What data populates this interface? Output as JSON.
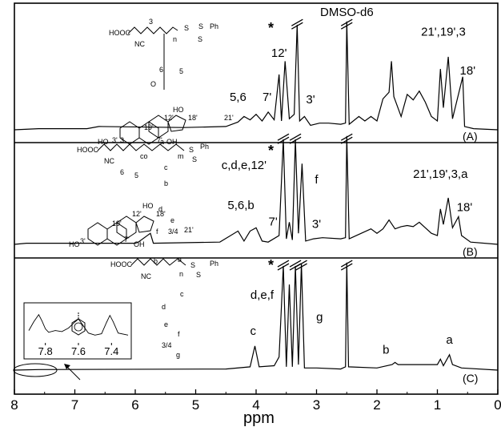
{
  "chart_data": {
    "type": "line",
    "title": "",
    "xlabel": "ppm",
    "ylabel": "",
    "xlim": [
      8,
      0
    ],
    "x_reversed": true,
    "x_ticks": [
      8,
      7,
      6,
      5,
      4,
      3,
      2,
      1,
      0
    ],
    "x_tick_labels": [
      "8",
      "7",
      "6",
      "5",
      "4",
      "3",
      "2",
      "1",
      "0"
    ],
    "grid": false,
    "legend": "none",
    "solvent_label": "DMSO-d6",
    "residual_marker": "*",
    "series": [
      {
        "name": "(A)",
        "points": [
          [
            8.0,
            0.0
          ],
          [
            7.6,
            0.01
          ],
          [
            6.8,
            0.01
          ],
          [
            6.6,
            0.03
          ],
          [
            5.2,
            0.02
          ],
          [
            4.5,
            0.03
          ],
          [
            4.3,
            0.07
          ],
          [
            4.2,
            0.12
          ],
          [
            4.1,
            0.09
          ],
          [
            4.0,
            0.14
          ],
          [
            3.9,
            0.08
          ],
          [
            3.8,
            0.16
          ],
          [
            3.7,
            0.09
          ],
          [
            3.62,
            0.5
          ],
          [
            3.58,
            0.08
          ],
          [
            3.52,
            0.62
          ],
          [
            3.45,
            0.1
          ],
          [
            3.37,
            0.14
          ],
          [
            3.32,
            0.95
          ],
          [
            3.28,
            0.08
          ],
          [
            3.2,
            0.12
          ],
          [
            3.1,
            0.04
          ],
          [
            2.95,
            0.06
          ],
          [
            2.8,
            0.06
          ],
          [
            2.6,
            0.05
          ],
          [
            2.52,
            0.06
          ],
          [
            2.5,
            0.98
          ],
          [
            2.46,
            0.05
          ],
          [
            2.3,
            0.12
          ],
          [
            2.2,
            0.08
          ],
          [
            2.1,
            0.12
          ],
          [
            2.0,
            0.08
          ],
          [
            1.9,
            0.28
          ],
          [
            1.8,
            0.34
          ],
          [
            1.76,
            0.62
          ],
          [
            1.72,
            0.3
          ],
          [
            1.6,
            0.12
          ],
          [
            1.5,
            0.32
          ],
          [
            1.4,
            0.27
          ],
          [
            1.3,
            0.35
          ],
          [
            1.2,
            0.25
          ],
          [
            1.1,
            0.12
          ],
          [
            1.0,
            0.08
          ],
          [
            0.95,
            0.55
          ],
          [
            0.9,
            0.2
          ],
          [
            0.82,
            0.66
          ],
          [
            0.75,
            0.1
          ],
          [
            0.58,
            0.48
          ],
          [
            0.55,
            0.03
          ],
          [
            0.4,
            0.01
          ],
          [
            0.0,
            0.0
          ]
        ],
        "labels": [
          {
            "text": "5,6",
            "x": 4.3,
            "y": 0.26
          },
          {
            "text": "7'",
            "x": 3.82,
            "y": 0.26
          },
          {
            "text": "12'",
            "x": 3.62,
            "y": 0.66
          },
          {
            "text": "3'",
            "x": 3.1,
            "y": 0.24
          },
          {
            "text": "21',19',3",
            "x": 0.9,
            "y": 0.85
          },
          {
            "text": "18'",
            "x": 0.5,
            "y": 0.5
          }
        ]
      },
      {
        "name": "(B)",
        "points": [
          [
            8.0,
            0.0
          ],
          [
            7.8,
            0.01
          ],
          [
            6.0,
            0.01
          ],
          [
            5.95,
            0.02
          ],
          [
            5.75,
            0.1
          ],
          [
            5.7,
            0.01
          ],
          [
            4.6,
            0.02
          ],
          [
            4.3,
            0.12
          ],
          [
            4.2,
            0.03
          ],
          [
            4.1,
            0.12
          ],
          [
            4.0,
            0.15
          ],
          [
            3.9,
            0.03
          ],
          [
            3.8,
            0.02
          ],
          [
            3.62,
            0.08
          ],
          [
            3.55,
            0.95
          ],
          [
            3.5,
            0.05
          ],
          [
            3.45,
            0.2
          ],
          [
            3.4,
            0.04
          ],
          [
            3.35,
            0.95
          ],
          [
            3.3,
            0.1
          ],
          [
            3.24,
            0.73
          ],
          [
            3.18,
            0.03
          ],
          [
            3.05,
            0.05
          ],
          [
            2.9,
            0.06
          ],
          [
            2.6,
            0.05
          ],
          [
            2.52,
            0.06
          ],
          [
            2.5,
            0.98
          ],
          [
            2.46,
            0.05
          ],
          [
            2.3,
            0.09
          ],
          [
            2.1,
            0.14
          ],
          [
            2.0,
            0.1
          ],
          [
            1.9,
            0.14
          ],
          [
            1.8,
            0.22
          ],
          [
            1.7,
            0.14
          ],
          [
            1.6,
            0.16
          ],
          [
            1.5,
            0.17
          ],
          [
            1.4,
            0.16
          ],
          [
            1.3,
            0.2
          ],
          [
            1.2,
            0.15
          ],
          [
            1.1,
            0.1
          ],
          [
            1.0,
            0.08
          ],
          [
            0.95,
            0.32
          ],
          [
            0.9,
            0.18
          ],
          [
            0.82,
            0.42
          ],
          [
            0.75,
            0.15
          ],
          [
            0.65,
            0.25
          ],
          [
            0.6,
            0.08
          ],
          [
            0.45,
            0.02
          ],
          [
            0.0,
            0.0
          ]
        ],
        "labels": [
          {
            "text": "c,d,e,12'",
            "x": 4.2,
            "y": 0.68
          },
          {
            "text": "f",
            "x": 3.0,
            "y": 0.55
          },
          {
            "text": "5,6,b",
            "x": 4.25,
            "y": 0.32
          },
          {
            "text": "7'",
            "x": 3.72,
            "y": 0.17
          },
          {
            "text": "3'",
            "x": 3.0,
            "y": 0.15
          },
          {
            "text": "21',19',3,a",
            "x": 0.95,
            "y": 0.6
          },
          {
            "text": "18'",
            "x": 0.55,
            "y": 0.3
          }
        ]
      },
      {
        "name": "(C)",
        "points": [
          [
            8.0,
            0.0
          ],
          [
            7.6,
            0.005
          ],
          [
            4.5,
            0.01
          ],
          [
            4.1,
            0.03
          ],
          [
            4.02,
            0.22
          ],
          [
            3.95,
            0.03
          ],
          [
            3.7,
            0.04
          ],
          [
            3.62,
            0.12
          ],
          [
            3.55,
            0.95
          ],
          [
            3.5,
            0.03
          ],
          [
            3.45,
            0.78
          ],
          [
            3.4,
            0.03
          ],
          [
            3.35,
            0.95
          ],
          [
            3.3,
            0.05
          ],
          [
            3.25,
            0.97
          ],
          [
            3.2,
            0.02
          ],
          [
            3.0,
            0.02
          ],
          [
            2.6,
            0.01
          ],
          [
            2.52,
            0.03
          ],
          [
            2.5,
            0.98
          ],
          [
            2.47,
            0.03
          ],
          [
            2.0,
            0.02
          ],
          [
            1.75,
            0.05
          ],
          [
            1.7,
            0.07
          ],
          [
            1.65,
            0.05
          ],
          [
            1.0,
            0.05
          ],
          [
            0.95,
            0.1
          ],
          [
            0.9,
            0.04
          ],
          [
            0.8,
            0.14
          ],
          [
            0.75,
            0.05
          ],
          [
            0.6,
            0.02
          ],
          [
            0.0,
            0.0
          ]
        ],
        "labels": [
          {
            "text": "d,e,f",
            "x": 3.9,
            "y": 0.65
          },
          {
            "text": "g",
            "x": 2.95,
            "y": 0.45
          },
          {
            "text": "c",
            "x": 4.05,
            "y": 0.32
          },
          {
            "text": "b",
            "x": 1.85,
            "y": 0.15
          },
          {
            "text": "a",
            "x": 0.8,
            "y": 0.24
          }
        ]
      }
    ],
    "inset": {
      "xlim": [
        7.9,
        7.3
      ],
      "x_ticks": [
        7.8,
        7.6,
        7.4
      ],
      "x_tick_labels": [
        "7.8",
        "7.6",
        "7.4"
      ],
      "points": [
        [
          7.9,
          0.35
        ],
        [
          7.87,
          0.6
        ],
        [
          7.84,
          0.8
        ],
        [
          7.82,
          0.62
        ],
        [
          7.8,
          0.4
        ],
        [
          7.78,
          0.3
        ],
        [
          7.74,
          0.35
        ],
        [
          7.7,
          0.32
        ],
        [
          7.66,
          0.42
        ],
        [
          7.62,
          0.6
        ],
        [
          7.6,
          0.68
        ],
        [
          7.58,
          0.55
        ],
        [
          7.54,
          0.28
        ],
        [
          7.5,
          0.22
        ],
        [
          7.46,
          0.26
        ],
        [
          7.43,
          0.58
        ],
        [
          7.41,
          0.78
        ],
        [
          7.39,
          0.6
        ],
        [
          7.36,
          0.28
        ],
        [
          7.3,
          0.22
        ]
      ]
    }
  }
}
